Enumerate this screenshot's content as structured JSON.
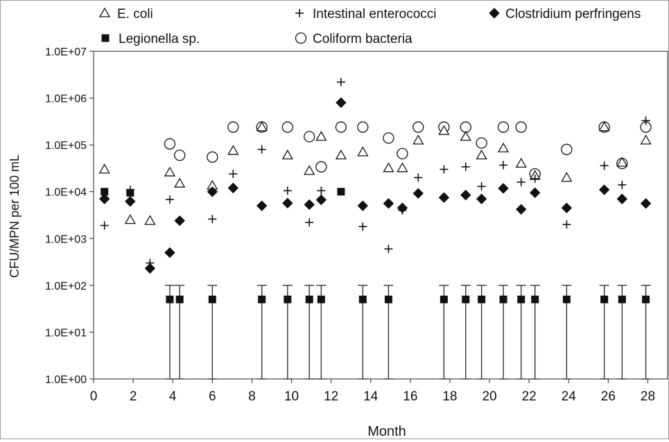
{
  "chart_data": {
    "type": "scatter",
    "xlabel": "Month",
    "ylabel": "CFU/MPN per 100 mL",
    "xlim": [
      0,
      29
    ],
    "ylim": [
      1,
      10000000
    ],
    "yscale": "log",
    "x_ticks": [
      0,
      2,
      4,
      6,
      8,
      10,
      12,
      14,
      16,
      18,
      20,
      22,
      24,
      26,
      28
    ],
    "x_tick_labels": [
      "0",
      "2",
      "4",
      "6",
      "8",
      "10",
      "12",
      "14",
      "16",
      "18",
      "20",
      "22",
      "24",
      "26",
      "28"
    ],
    "y_ticks": [
      1,
      10,
      100,
      1000,
      10000,
      100000,
      1000000,
      10000000
    ],
    "y_tick_labels": [
      "1.0E+00",
      "1.0E+01",
      "1.0E+02",
      "1.0E+03",
      "1.0E+04",
      "1.0E+05",
      "1.0E+06",
      "1.0E+07"
    ],
    "grid": false,
    "legend_position": "top",
    "series": [
      {
        "name": "E. coli",
        "marker": "open-triangle",
        "points": [
          [
            0.55,
            30000
          ],
          [
            1.85,
            2500
          ],
          [
            2.85,
            2400
          ],
          [
            3.85,
            26000
          ],
          [
            4.35,
            15000
          ],
          [
            6.0,
            13500
          ],
          [
            7.05,
            75000
          ],
          [
            8.5,
            240000
          ],
          [
            9.8,
            60000
          ],
          [
            10.9,
            28000
          ],
          [
            11.5,
            150000
          ],
          [
            12.5,
            60000
          ],
          [
            13.6,
            70000
          ],
          [
            14.9,
            32000
          ],
          [
            15.6,
            32000
          ],
          [
            16.4,
            125000
          ],
          [
            17.7,
            200000
          ],
          [
            18.8,
            150000
          ],
          [
            19.6,
            60000
          ],
          [
            20.7,
            85000
          ],
          [
            21.6,
            40000
          ],
          [
            22.3,
            22000
          ],
          [
            23.9,
            20000
          ],
          [
            25.8,
            240000
          ],
          [
            26.7,
            42000
          ],
          [
            27.9,
            125000
          ]
        ]
      },
      {
        "name": "Intestinal enterococci",
        "marker": "plus",
        "points": [
          [
            0.55,
            1900
          ],
          [
            1.85,
            11000
          ],
          [
            2.85,
            300
          ],
          [
            3.85,
            6800
          ],
          [
            6.0,
            2600
          ],
          [
            7.05,
            24000
          ],
          [
            8.5,
            80000
          ],
          [
            9.8,
            10500
          ],
          [
            10.9,
            2200
          ],
          [
            11.5,
            10500
          ],
          [
            12.5,
            2200000
          ],
          [
            13.6,
            1800
          ],
          [
            14.9,
            600
          ],
          [
            15.6,
            4000
          ],
          [
            16.4,
            20000
          ],
          [
            17.7,
            30000
          ],
          [
            18.8,
            34000
          ],
          [
            19.6,
            13000
          ],
          [
            20.7,
            37000
          ],
          [
            21.6,
            16000
          ],
          [
            22.3,
            19000
          ],
          [
            23.9,
            2000
          ],
          [
            25.8,
            36000
          ],
          [
            26.7,
            14000
          ],
          [
            27.9,
            330000
          ]
        ]
      },
      {
        "name": "Clostridium perfringens",
        "marker": "filled-diamond",
        "points": [
          [
            0.55,
            7000
          ],
          [
            1.85,
            6200
          ],
          [
            2.85,
            230
          ],
          [
            3.85,
            500
          ],
          [
            4.35,
            2400
          ],
          [
            6.0,
            10000
          ],
          [
            7.05,
            12000
          ],
          [
            8.5,
            5000
          ],
          [
            9.8,
            5700
          ],
          [
            10.9,
            5300
          ],
          [
            11.5,
            6700
          ],
          [
            12.5,
            800000
          ],
          [
            13.6,
            5000
          ],
          [
            14.9,
            5600
          ],
          [
            15.6,
            4500
          ],
          [
            16.4,
            9200
          ],
          [
            17.7,
            7500
          ],
          [
            18.8,
            8500
          ],
          [
            19.6,
            7000
          ],
          [
            20.7,
            11800
          ],
          [
            21.6,
            4200
          ],
          [
            22.3,
            9500
          ],
          [
            23.9,
            4500
          ],
          [
            25.8,
            11000
          ],
          [
            26.7,
            7000
          ],
          [
            27.9,
            5600
          ]
        ]
      },
      {
        "name": "Legionella sp.",
        "marker": "filled-square",
        "points": [
          [
            0.55,
            10000
          ],
          [
            1.85,
            9500
          ],
          [
            3.85,
            50
          ],
          [
            4.35,
            50
          ],
          [
            6.0,
            50
          ],
          [
            8.5,
            50
          ],
          [
            9.8,
            50
          ],
          [
            10.9,
            50
          ],
          [
            11.5,
            50
          ],
          [
            12.5,
            10000
          ],
          [
            13.6,
            50
          ],
          [
            14.9,
            50
          ],
          [
            17.7,
            50
          ],
          [
            18.8,
            50
          ],
          [
            19.6,
            50
          ],
          [
            20.7,
            50
          ],
          [
            21.6,
            50
          ],
          [
            22.3,
            50
          ],
          [
            23.9,
            50
          ],
          [
            25.8,
            50
          ],
          [
            26.7,
            50
          ],
          [
            27.9,
            50
          ]
        ],
        "error_bars": {
          "x": [
            3.85,
            4.35,
            6.0,
            8.5,
            9.8,
            10.9,
            11.5,
            13.6,
            14.9,
            17.7,
            18.8,
            19.6,
            20.7,
            21.6,
            22.3,
            23.9,
            25.8,
            26.7,
            27.9
          ],
          "low": 1,
          "high": 100
        }
      },
      {
        "name": "Coliform bacteria",
        "marker": "open-circle",
        "points": [
          [
            3.85,
            105000
          ],
          [
            4.35,
            60000
          ],
          [
            6.0,
            55000
          ],
          [
            7.05,
            240000
          ],
          [
            8.5,
            240000
          ],
          [
            9.8,
            240000
          ],
          [
            10.9,
            150000
          ],
          [
            11.5,
            34000
          ],
          [
            12.5,
            240000
          ],
          [
            13.6,
            240000
          ],
          [
            14.9,
            140000
          ],
          [
            15.6,
            65000
          ],
          [
            16.4,
            240000
          ],
          [
            17.7,
            240000
          ],
          [
            18.8,
            240000
          ],
          [
            19.6,
            110000
          ],
          [
            20.7,
            240000
          ],
          [
            21.6,
            240000
          ],
          [
            22.3,
            24000
          ],
          [
            23.9,
            80000
          ],
          [
            25.8,
            240000
          ],
          [
            26.7,
            40000
          ],
          [
            27.9,
            240000
          ]
        ]
      }
    ]
  }
}
